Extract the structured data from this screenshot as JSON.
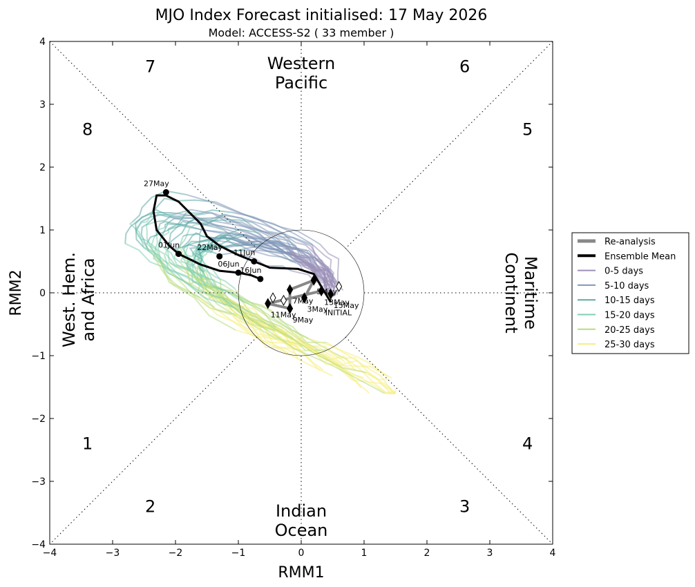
{
  "chart_data": {
    "type": "line",
    "title": "MJO Index Forecast initialised:  17  May 2026",
    "subtitle": "Model: ACCESS-S2 ( 33 member )",
    "xlabel": "RMM1",
    "ylabel": "RMM2",
    "xlim": [
      -4,
      4
    ],
    "ylim": [
      -4,
      4
    ],
    "x_ticks": [
      "−4",
      "−3",
      "−2",
      "−1",
      "0",
      "1",
      "2",
      "3",
      "4"
    ],
    "y_ticks": [
      "−4",
      "−3",
      "−2",
      "−1",
      "0",
      "1",
      "2",
      "3",
      "4"
    ],
    "legend_position": "right",
    "regions": {
      "western_pacific": "Western\nPacific",
      "indian_ocean": "Indian\nOcean",
      "west_hem_africa": "West. Hem.\nand Africa",
      "maritime_continent": "Maritime\nContinent"
    },
    "phases": [
      {
        "label": "1",
        "x": -3.4,
        "y": -2.4
      },
      {
        "label": "2",
        "x": -2.4,
        "y": -3.4
      },
      {
        "label": "3",
        "x": 2.6,
        "y": -3.4
      },
      {
        "label": "4",
        "x": 3.6,
        "y": -2.4
      },
      {
        "label": "5",
        "x": 3.6,
        "y": 2.6
      },
      {
        "label": "6",
        "x": 2.6,
        "y": 3.6
      },
      {
        "label": "7",
        "x": -2.4,
        "y": 3.6
      },
      {
        "label": "8",
        "x": -3.4,
        "y": 2.6
      }
    ],
    "legend": [
      {
        "label": "Re-analysis",
        "color": "#888888"
      },
      {
        "label": "Ensemble Mean",
        "color": "#000000"
      },
      {
        "label": "0-5 days",
        "color": "#9a8fb8"
      },
      {
        "label": "5-10 days",
        "color": "#7f97b8"
      },
      {
        "label": "10-15 days",
        "color": "#5aa9a6"
      },
      {
        "label": "15-20 days",
        "color": "#7fcfb0"
      },
      {
        "label": "20-25 days",
        "color": "#b8dc80"
      },
      {
        "label": "25-30 days",
        "color": "#f5ee80"
      }
    ],
    "reanalysis": {
      "name": "Re-analysis",
      "points": [
        {
          "date": "3May",
          "x": 0.05,
          "y": -0.08
        },
        {
          "date": "5May",
          "x": 0.2,
          "y": 0.2
        },
        {
          "date": "7May",
          "x": -0.18,
          "y": 0.05
        },
        {
          "date": "9May",
          "x": -0.18,
          "y": -0.25
        },
        {
          "date": "11May",
          "x": -0.53,
          "y": -0.17
        },
        {
          "date": "13May",
          "x": 0.32,
          "y": 0.03
        },
        {
          "date": "15May",
          "x": 0.47,
          "y": -0.02
        }
      ],
      "open_markers": [
        {
          "x": -0.45,
          "y": -0.08
        },
        {
          "x": -0.28,
          "y": -0.12
        },
        {
          "x": 0.6,
          "y": 0.1
        }
      ]
    },
    "ensemble_mean": {
      "name": "Ensemble Mean",
      "points": [
        {
          "x": 0.47,
          "y": -0.15
        },
        {
          "x": 0.35,
          "y": 0.05
        },
        {
          "x": 0.2,
          "y": 0.3
        },
        {
          "x": -0.05,
          "y": 0.38
        },
        {
          "x": -0.5,
          "y": 0.4
        },
        {
          "x": -0.75,
          "y": 0.5
        },
        {
          "x": -1.0,
          "y": 0.6
        },
        {
          "x": -1.3,
          "y": 0.75
        },
        {
          "x": -1.5,
          "y": 0.9
        },
        {
          "x": -1.6,
          "y": 1.1
        },
        {
          "x": -1.8,
          "y": 1.3
        },
        {
          "x": -1.95,
          "y": 1.45
        },
        {
          "x": -2.15,
          "y": 1.55
        },
        {
          "x": -2.3,
          "y": 1.55
        },
        {
          "x": -2.35,
          "y": 1.3
        },
        {
          "x": -2.3,
          "y": 1.0
        },
        {
          "x": -2.1,
          "y": 0.75
        },
        {
          "x": -1.95,
          "y": 0.62
        },
        {
          "x": -1.6,
          "y": 0.45
        },
        {
          "x": -1.3,
          "y": 0.35
        },
        {
          "x": -1.0,
          "y": 0.32
        },
        {
          "x": -0.8,
          "y": 0.28
        },
        {
          "x": -0.65,
          "y": 0.22
        }
      ],
      "dates": [
        {
          "label": "22May",
          "x": -1.3,
          "y": 0.58
        },
        {
          "label": "27May",
          "x": -2.15,
          "y": 1.6
        },
        {
          "label": "01Jun",
          "x": -1.95,
          "y": 0.62
        },
        {
          "label": "06Jun",
          "x": -1.0,
          "y": 0.32
        },
        {
          "label": "11Jun",
          "x": -0.75,
          "y": 0.5
        },
        {
          "label": "16Jun",
          "x": -0.65,
          "y": 0.22
        }
      ]
    },
    "initial_label": "INITIAL",
    "initial_point": {
      "x": 0.47,
      "y": -0.15
    }
  }
}
